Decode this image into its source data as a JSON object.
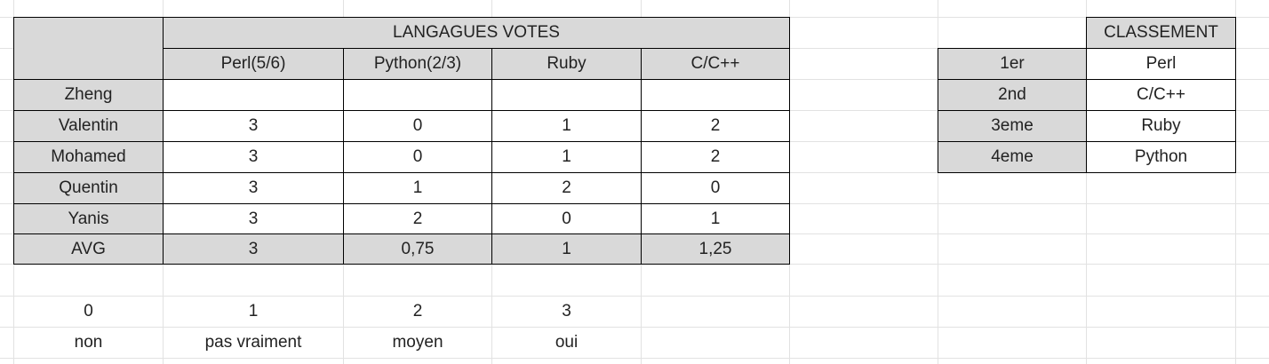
{
  "votes_table": {
    "group_header": "LANGAGUES VOTES",
    "languages": [
      "Perl(5/6)",
      "Python(2/3)",
      "Ruby",
      "C/C++"
    ],
    "rows": [
      {
        "name": "Zheng",
        "values": [
          "",
          "",
          "",
          ""
        ]
      },
      {
        "name": "Valentin",
        "values": [
          "3",
          "0",
          "1",
          "2"
        ]
      },
      {
        "name": "Mohamed",
        "values": [
          "3",
          "0",
          "1",
          "2"
        ]
      },
      {
        "name": "Quentin",
        "values": [
          "3",
          "1",
          "2",
          "0"
        ]
      },
      {
        "name": "Yanis",
        "values": [
          "3",
          "2",
          "0",
          "1"
        ]
      }
    ],
    "avg": {
      "label": "AVG",
      "values": [
        "3",
        "0,75",
        "1",
        "1,25"
      ]
    }
  },
  "scale": {
    "numbers": [
      "0",
      "1",
      "2",
      "3"
    ],
    "labels": [
      "non",
      "pas vraiment",
      "moyen",
      "oui"
    ]
  },
  "ranking": {
    "header": "CLASSEMENT",
    "rows": [
      {
        "place": "1er",
        "language": "Perl"
      },
      {
        "place": "2nd",
        "language": "C/C++"
      },
      {
        "place": "3eme",
        "language": "Ruby"
      },
      {
        "place": "4eme",
        "language": "Python"
      }
    ]
  },
  "colors": {
    "header_fill": "#d9d9d9",
    "border": "#000000",
    "gridline": "#e2e2e2"
  }
}
